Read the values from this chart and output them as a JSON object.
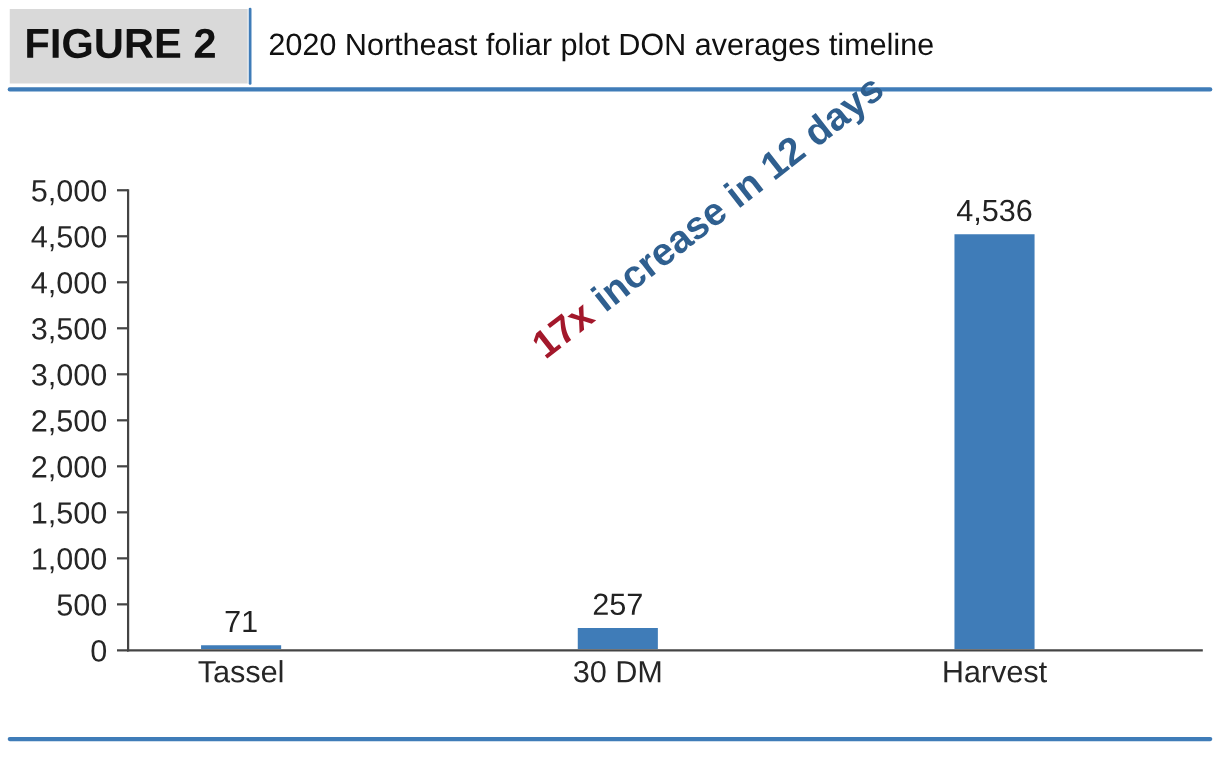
{
  "chart_data": {
    "type": "bar",
    "title": "FIGURE 2",
    "subtitle": "2020 Northeast foliar plot DON averages timeline",
    "categories": [
      "Tassel",
      "30 DM",
      "Harvest"
    ],
    "values": [
      71,
      257,
      4536
    ],
    "color": "#3f7cb8",
    "ylim": [
      0,
      5000
    ],
    "yticks": [
      {
        "value": 0,
        "label": "0"
      },
      {
        "value": 500,
        "label": "500"
      },
      {
        "value": 1000,
        "label": "1,000"
      },
      {
        "value": 1500,
        "label": "1,500"
      },
      {
        "value": 2000,
        "label": "2,000"
      },
      {
        "value": 2500,
        "label": "2,500"
      },
      {
        "value": 3000,
        "label": "3,000"
      },
      {
        "value": 3500,
        "label": "3,500"
      },
      {
        "value": 4000,
        "label": "4,000"
      },
      {
        "value": 4500,
        "label": "4,500"
      },
      {
        "value": 5000,
        "label": "5,000"
      }
    ],
    "grid": false,
    "value_labels": [
      "71",
      "257",
      "4,536"
    ],
    "annotations": [
      "17x",
      "increase in 12 days"
    ]
  }
}
